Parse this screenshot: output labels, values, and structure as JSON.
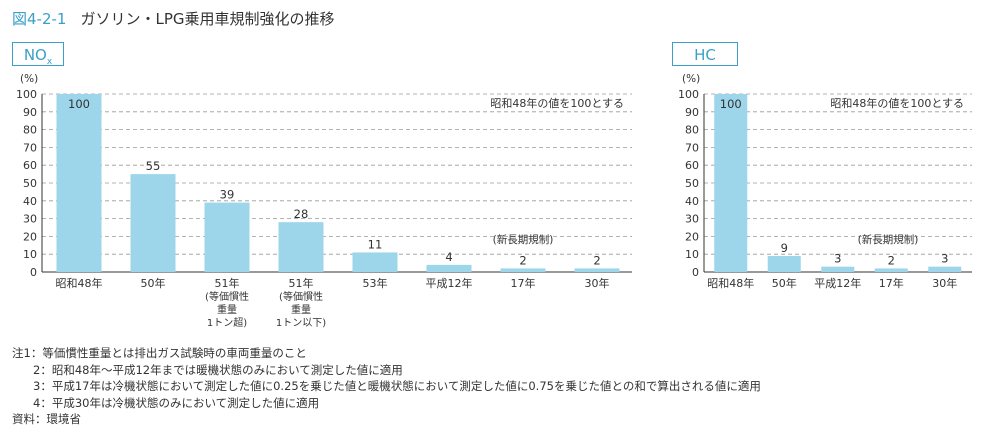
{
  "figure": {
    "number": "図4-2-1",
    "title": "ガソリン・LPG乗用車規制強化の推移"
  },
  "colors": {
    "accent": "#3aa0c8",
    "bar": "#9dd6ea",
    "grid": "#9a9a9a",
    "axis": "#333333"
  },
  "chart_data": [
    {
      "type": "bar",
      "panel_label": "NOx",
      "unit": "(%)",
      "ylim": [
        0,
        100
      ],
      "yticks": [
        0,
        10,
        20,
        30,
        40,
        50,
        60,
        70,
        80,
        90,
        100
      ],
      "grid": true,
      "note": "昭和48年の値を100とする",
      "categories": [
        "昭和48年",
        "50年",
        "51年\n(等価慣性\n重量\n1トン超)",
        "51年\n(等価慣性\n重量\n1トン以下)",
        "53年",
        "平成12年",
        "17年",
        "30年"
      ],
      "values": [
        100,
        55,
        39,
        28,
        11,
        4,
        2,
        2
      ],
      "annotation": {
        "text": "(新長期規制)"
      }
    },
    {
      "type": "bar",
      "panel_label": "HC",
      "unit": "(%)",
      "ylim": [
        0,
        100
      ],
      "yticks": [
        0,
        10,
        20,
        30,
        40,
        50,
        60,
        70,
        80,
        90,
        100
      ],
      "grid": true,
      "note": "昭和48年の値を100とする",
      "categories": [
        "昭和48年",
        "50年",
        "平成12年",
        "17年",
        "30年"
      ],
      "values": [
        100,
        9,
        3,
        2,
        3
      ],
      "annotation": {
        "text": "(新長期規制)"
      }
    }
  ],
  "notes": [
    "注1：等価慣性重量とは排出ガス試験時の車両重量のこと",
    "2：昭和48年〜平成12年までは暖機状態のみにおいて測定した値に適用",
    "3：平成17年は冷機状態において測定した値に0.25を乗じた値と暖機状態において測定した値に0.75を乗じた値との和で算出される値に適用",
    "4：平成30年は冷機状態のみにおいて測定した値に適用"
  ],
  "source": "資料：環境省"
}
